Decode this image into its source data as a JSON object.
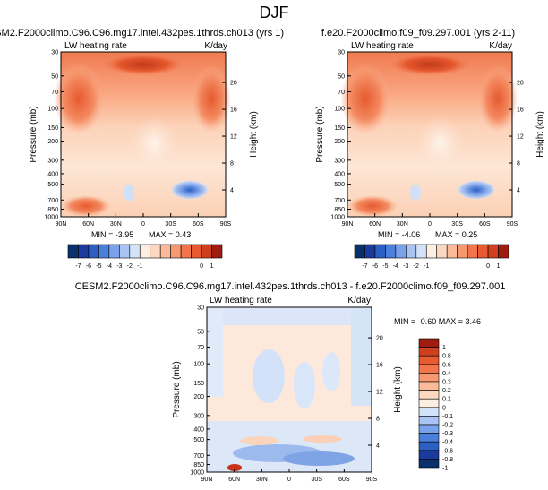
{
  "figure": {
    "title": "DJF"
  },
  "colors": {
    "neg": [
      "#08306b",
      "#1b3a9e",
      "#2c5fc4",
      "#4a7fdc",
      "#7aa2ea",
      "#a9c4f2",
      "#d2e2f9"
    ],
    "pos": [
      "#fdeee2",
      "#fcd8c0",
      "#fbbb9a",
      "#f89870",
      "#f2754b",
      "#e85a30",
      "#d0401e",
      "#a01c10"
    ]
  },
  "chart_data": [
    {
      "type": "heatmap",
      "title": "CESM2.F2000climo.C96.C96.mg17.intel.432pes.1thrds.ch013 (yrs 1)",
      "variable": "LW heating rate",
      "units": "K/day",
      "ylabel": "Pressure (mb)",
      "ylabel_right": "Height (km)",
      "x_ticks": [
        "90N",
        "60N",
        "30N",
        "0",
        "30S",
        "60S",
        "90S"
      ],
      "y_ticks": [
        "1000",
        "850",
        "700",
        "500",
        "400",
        "300",
        "200",
        "150",
        "100",
        "70",
        "50",
        "30"
      ],
      "y_ticks_right": [
        "4",
        "8",
        "12",
        "16",
        "20"
      ],
      "ylim": [
        1000,
        30
      ],
      "min_label": "MIN = -3.95",
      "max_label": "MAX =  0.43",
      "colorbar_labels": [
        "-7",
        "-6",
        "-5",
        "-4",
        "-3",
        "-2",
        "-1",
        "0",
        "1"
      ]
    },
    {
      "type": "heatmap",
      "title": "f.e20.F2000climo.f09_f09.297.001 (yrs 2-11)",
      "variable": "LW heating rate",
      "units": "K/day",
      "ylabel": "Pressure (mb)",
      "ylabel_right": "Height (km)",
      "x_ticks": [
        "90N",
        "60N",
        "30N",
        "0",
        "30S",
        "60S",
        "90S"
      ],
      "y_ticks": [
        "1000",
        "850",
        "700",
        "500",
        "400",
        "300",
        "200",
        "150",
        "100",
        "70",
        "50",
        "30"
      ],
      "y_ticks_right": [
        "4",
        "8",
        "12",
        "16",
        "20"
      ],
      "ylim": [
        1000,
        30
      ],
      "min_label": "MIN = -4.06",
      "max_label": "MAX =  0.25",
      "colorbar_labels": [
        "-7",
        "-6",
        "-5",
        "-4",
        "-3",
        "-2",
        "-1",
        "0",
        "1"
      ]
    },
    {
      "type": "heatmap",
      "title": "CESM2.F2000climo.C96.C96.mg17.intel.432pes.1thrds.ch013 - f.e20.F2000climo.f09_f09.297.001",
      "variable": "LW heating rate",
      "units": "K/day",
      "ylabel": "Pressure (mb)",
      "ylabel_right": "Height (km)",
      "x_ticks": [
        "90N",
        "60N",
        "30N",
        "0",
        "30S",
        "60S",
        "90S"
      ],
      "y_ticks": [
        "1000",
        "850",
        "700",
        "500",
        "400",
        "300",
        "200",
        "150",
        "100",
        "70",
        "50",
        "30"
      ],
      "y_ticks_right": [
        "4",
        "8",
        "12",
        "16",
        "20"
      ],
      "ylim": [
        1000,
        30
      ],
      "minmax_label": "MIN = -0.60  MAX =  3.46",
      "colorbar_labels": [
        "1",
        "0.8",
        "0.6",
        "0.4",
        "0.3",
        "0.2",
        "0.1",
        "0",
        "-0.1",
        "-0.2",
        "-0.3",
        "-0.4",
        "-0.6",
        "-0.8",
        "-1"
      ]
    }
  ]
}
